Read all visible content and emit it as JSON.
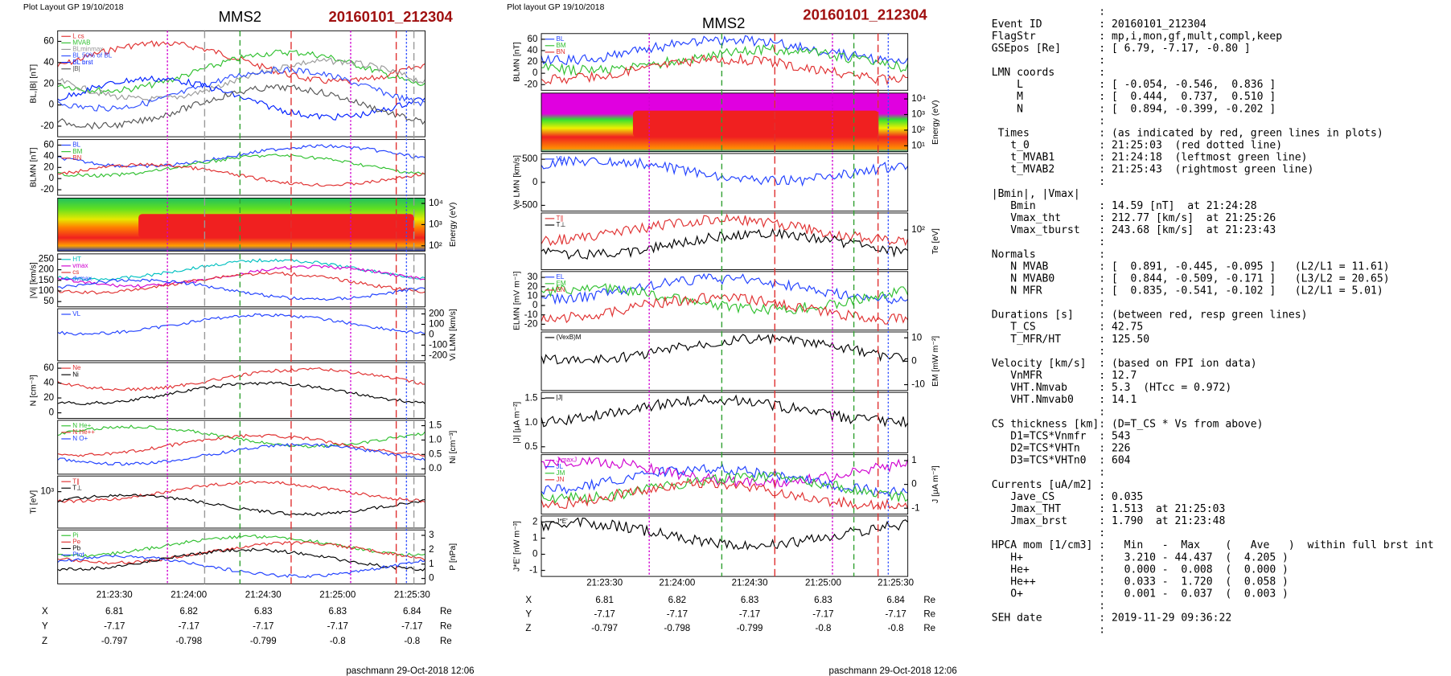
{
  "left": {
    "header": "Plot Layout GP 19/10/2018",
    "title": "MMS2",
    "event": "20160101_212304",
    "footer": "paschmann 29-Oct-2018 12:06",
    "panels": [
      {
        "label": "BL,|B| [nT]",
        "side": "left",
        "ticks": [
          "60",
          "40",
          "20",
          "0",
          "-20"
        ],
        "legend": [
          {
            "text": "L cs",
            "color": "#e03030"
          },
          {
            "text": "MVAB",
            "color": "#30c030"
          },
          {
            "text": "BLminmax",
            "color": "#999999"
          },
          {
            "text": "BL 50% of BL",
            "color": "#3050ff"
          },
          {
            "text": "BL brst",
            "color": "#0020ff"
          },
          {
            "text": "|B|",
            "color": "#555555"
          }
        ]
      },
      {
        "label": "BLMN [nT]",
        "side": "left",
        "ticks": [
          "60",
          "40",
          "20",
          "0",
          "-20"
        ],
        "legend": [
          {
            "text": "BL",
            "color": "#2040ff"
          },
          {
            "text": "BM",
            "color": "#30c030"
          },
          {
            "text": "BN",
            "color": "#e03030"
          }
        ]
      },
      {
        "label": "Energy (eV)",
        "side": "right",
        "ticks": [
          "10⁴",
          "10³",
          "10²"
        ],
        "spectrogram": true
      },
      {
        "label": "|Vi| [km/s]",
        "side": "left",
        "ticks": [
          "250",
          "200",
          "150",
          "100",
          "50"
        ],
        "legend": [
          {
            "text": "HT",
            "color": "#00c0c0"
          },
          {
            "text": "vmax",
            "color": "#d000d0"
          },
          {
            "text": "cs",
            "color": "#e03030"
          },
          {
            "text": "dvmax",
            "color": "#2040ff"
          }
        ]
      },
      {
        "label": "Vi LMN [km/s]",
        "side": "right",
        "ticks": [
          "200",
          "100",
          "0",
          "-100",
          "-200"
        ],
        "legend": [
          {
            "text": "VL",
            "color": "#2040ff"
          }
        ]
      },
      {
        "label": "N [cm⁻³]",
        "side": "left",
        "ticks": [
          "60",
          "40",
          "20",
          "0"
        ],
        "legend": [
          {
            "text": "Ne",
            "color": "#e03030"
          },
          {
            "text": "Ni",
            "color": "#000000"
          }
        ]
      },
      {
        "label": "Ni [cm⁻³]",
        "side": "right",
        "ticks": [
          "1.5",
          "1.0",
          "0.5",
          "0.0"
        ],
        "legend": [
          {
            "text": "N  He+",
            "color": "#30c030"
          },
          {
            "text": "N  He++",
            "color": "#e03030"
          },
          {
            "text": "N  O+",
            "color": "#2040ff"
          }
        ]
      },
      {
        "label": "Ti [eV]",
        "side": "left",
        "ticks": [
          "10³"
        ],
        "legend": [
          {
            "text": "T∥",
            "color": "#e03030"
          },
          {
            "text": "T⊥",
            "color": "#000000"
          }
        ]
      },
      {
        "label": "P [nPa]",
        "side": "right",
        "ticks": [
          "3",
          "2",
          "1",
          "0"
        ],
        "legend": [
          {
            "text": "Pi",
            "color": "#30c030"
          },
          {
            "text": "Pe",
            "color": "#e03030"
          },
          {
            "text": "Pb",
            "color": "#000000"
          },
          {
            "text": "Ptot",
            "color": "#2040ff"
          }
        ]
      }
    ],
    "times": [
      "21:23:30",
      "21:24:00",
      "21:24:30",
      "21:25:00",
      "21:25:30"
    ],
    "positions": [
      [
        "X",
        "6.81",
        "6.82",
        "6.83",
        "6.83",
        "6.84",
        "Re"
      ],
      [
        "Y",
        "-7.17",
        "-7.17",
        "-7.17",
        "-7.17",
        "-7.17",
        "Re"
      ],
      [
        "Z",
        "-0.797",
        "-0.798",
        "-0.799",
        "-0.8",
        "-0.8",
        "Re"
      ]
    ]
  },
  "right": {
    "header": "Plot layout GP 19/10/2018",
    "title": "MMS2",
    "event": "20160101_212304",
    "footer": "paschmann 29-Oct-2018 12:06",
    "panels": [
      {
        "label": "BLMN [nT]",
        "side": "left",
        "ticks": [
          "60",
          "40",
          "20",
          "0",
          "-20"
        ],
        "legend": [
          {
            "text": "BL",
            "color": "#2040ff"
          },
          {
            "text": "BM",
            "color": "#30c030"
          },
          {
            "text": "BN",
            "color": "#e03030"
          }
        ]
      },
      {
        "label": "Energy (eV)",
        "side": "right",
        "ticks": [
          "10⁴",
          "10³",
          "10²",
          "10¹"
        ],
        "spectrogram": true
      },
      {
        "label": "Ve LMN [km/s]",
        "side": "left",
        "ticks": [
          "500",
          "0",
          "-500"
        ],
        "legend": [
          {
            "text": "VL",
            "color": "#2040ff"
          }
        ]
      },
      {
        "label": "Te [eV]",
        "side": "right",
        "ticks": [
          "10²"
        ],
        "legend": [
          {
            "text": "T∥",
            "color": "#e03030"
          },
          {
            "text": "T⊥",
            "color": "#000000"
          }
        ]
      },
      {
        "label": "ELMN [mV m⁻¹]",
        "side": "left",
        "ticks": [
          "30",
          "20",
          "10",
          "0",
          "-10",
          "-20"
        ],
        "legend": [
          {
            "text": "EL",
            "color": "#2040ff"
          },
          {
            "text": "EM",
            "color": "#30c030"
          },
          {
            "text": "EN",
            "color": "#e03030"
          }
        ]
      },
      {
        "label": "EM [mW m⁻²]",
        "side": "right",
        "ticks": [
          "10",
          "0",
          "-10"
        ],
        "legend": [
          {
            "text": "(VexB)M",
            "color": "#000000"
          }
        ]
      },
      {
        "label": "|J| [μA m⁻²]",
        "side": "left",
        "ticks": [
          "1.5",
          "1.0",
          "0.5"
        ],
        "legend": [
          {
            "text": "|J|",
            "color": "#000000"
          }
        ]
      },
      {
        "label": "J [μA m⁻²]",
        "side": "right",
        "ticks": [
          "1",
          "0",
          "-1"
        ],
        "legend": [
          {
            "text": "J maxJ",
            "color": "#d000d0"
          },
          {
            "text": "JL",
            "color": "#2040ff"
          },
          {
            "text": "JM",
            "color": "#30c030"
          },
          {
            "text": "JN",
            "color": "#e03030"
          }
        ]
      },
      {
        "label": "J*E' [nW m⁻³]",
        "side": "left",
        "ticks": [
          "2",
          "1",
          "0",
          "-1"
        ],
        "legend": [
          {
            "text": "J*E'",
            "color": "#000000"
          }
        ]
      }
    ],
    "times": [
      "21:23:30",
      "21:24:00",
      "21:24:30",
      "21:25:00",
      "21:25:30"
    ],
    "positions": [
      [
        "X",
        "6.81",
        "6.82",
        "6.83",
        "6.83",
        "6.84",
        "Re"
      ],
      [
        "Y",
        "-7.17",
        "-7.17",
        "-7.17",
        "-7.17",
        "-7.17",
        "Re"
      ],
      [
        "Z",
        "-0.797",
        "-0.798",
        "-0.799",
        "-0.8",
        "-0.8",
        "Re"
      ]
    ]
  },
  "info": [
    "                 :",
    "Event ID         : 20160101_212304",
    "FlagStr          : mp,i,mon,gf,mult,compl,keep",
    "GSEpos [Re]      : [ 6.79, -7.17, -0.80 ]",
    "                 :",
    "LMN coords       :",
    "    L            : [ -0.054, -0.546,  0.836 ]",
    "    M            : [  0.444,  0.737,  0.510 ]",
    "    N            : [  0.894, -0.399, -0.202 ]",
    "                 :",
    " Times           : (as indicated by red, green lines in plots)",
    "   t_0           : 21:25:03  (red dotted line)",
    "   t_MVAB1       : 21:24:18  (leftmost green line)",
    "   t_MVAB2       : 21:25:43  (rightmost green line)",
    "                 :",
    "|Bmin|, |Vmax|",
    "   Bmin          : 14.59 [nT]  at 21:24:28",
    "   Vmax_tht      : 212.77 [km/s]  at 21:25:26",
    "   Vmax_tburst   : 243.68 [km/s]  at 21:23:43",
    "                 :",
    "Normals          :",
    "   N MVAB        : [  0.891, -0.445, -0.095 ]   (L2/L1 = 11.61)",
    "   N MVAB0       : [  0.844, -0.509, -0.171 ]   (L3/L2 = 20.65)",
    "   N MFR         : [  0.835, -0.541, -0.102 ]   (L2/L1 = 5.01)",
    "                 :",
    "Durations [s]    : (between red, resp green lines)",
    "   T_CS          : 42.75",
    "   T_MFR/HT      : 125.50",
    "                 :",
    "Velocity [km/s]  : (based on FPI ion data)",
    "   VnMFR         : 12.7",
    "   VHT.Nmvab     : 5.3  (HTcc = 0.972)",
    "   VHT.Nmvab0    : 14.1",
    "                 :",
    "CS thickness [km]: (D=T_CS * Vs from above)",
    "   D1=TCS*Vnmfr  : 543",
    "   D2=TCS*VHTn   : 226",
    "   D3=TCS*VHTn0  : 604",
    "                 :",
    "Currents [uA/m2] :",
    "   Jave_CS       : 0.035",
    "   Jmax_THT      : 1.513  at 21:25:03",
    "   Jmax_brst     : 1.790  at 21:23:48",
    "                 :",
    "HPCA mom [1/cm3] :   Min   -  Max    (   Ave   )  within full brst int",
    "   H+            :   3.210 - 44.437  (  4.205 )",
    "   He+           :   0.000 -  0.008  (  0.000 )",
    "   He++          :   0.033 -  1.720  (  0.058 )",
    "   O+            :   0.001 -  0.037  (  0.003 )",
    "                 :",
    "SEH date         : 2019-11-29 09:36:22",
    "                 :"
  ]
}
